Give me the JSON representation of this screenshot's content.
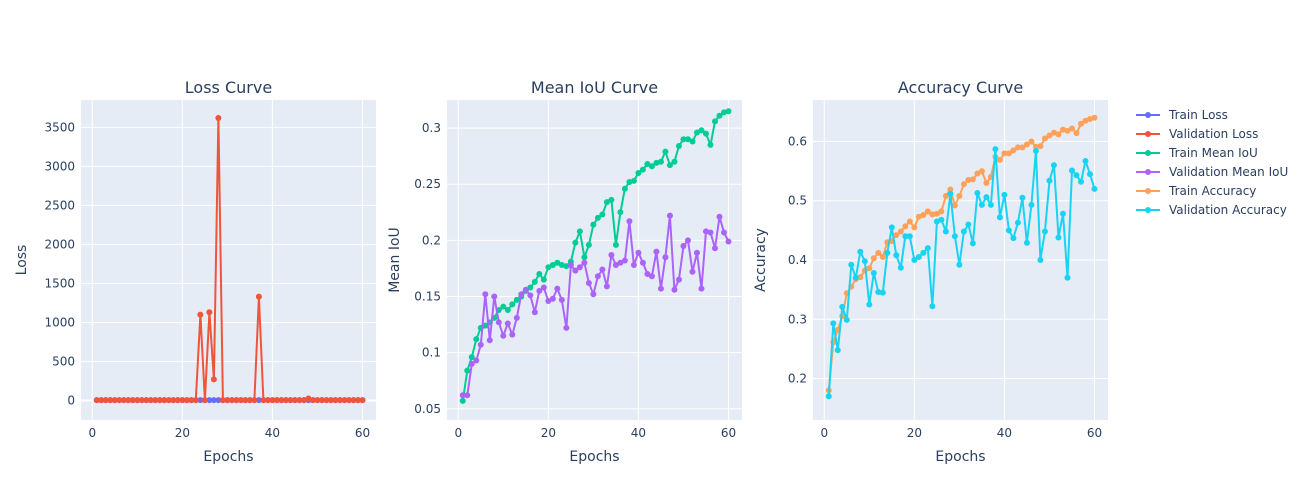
{
  "chart_data": [
    {
      "type": "line",
      "title": "Loss Curve",
      "xlabel": "Epochs",
      "ylabel": "Loss",
      "xlim": [
        -2.5,
        63
      ],
      "ylim": [
        -250,
        3850
      ],
      "xticks": [
        0,
        20,
        40,
        60
      ],
      "yticks": [
        0,
        500,
        1000,
        1500,
        2000,
        2500,
        3000,
        3500
      ],
      "x": [
        1,
        2,
        3,
        4,
        5,
        6,
        7,
        8,
        9,
        10,
        11,
        12,
        13,
        14,
        15,
        16,
        17,
        18,
        19,
        20,
        21,
        22,
        23,
        24,
        25,
        26,
        27,
        28,
        29,
        30,
        31,
        32,
        33,
        34,
        35,
        36,
        37,
        38,
        39,
        40,
        41,
        42,
        43,
        44,
        45,
        46,
        47,
        48,
        49,
        50,
        51,
        52,
        53,
        54,
        55,
        56,
        57,
        58,
        59,
        60
      ],
      "series": [
        {
          "name": "Train Loss",
          "color": "#636efa",
          "values": [
            5,
            4,
            4,
            4,
            4,
            4,
            4,
            4,
            4,
            4,
            4,
            4,
            4,
            4,
            4,
            4,
            4,
            4,
            4,
            4,
            4,
            4,
            4,
            4,
            4,
            4,
            4,
            4,
            4,
            4,
            4,
            4,
            4,
            4,
            4,
            4,
            4,
            4,
            4,
            4,
            4,
            4,
            4,
            4,
            4,
            4,
            4,
            4,
            4,
            4,
            4,
            4,
            4,
            4,
            4,
            4,
            4,
            4,
            4,
            4
          ]
        },
        {
          "name": "Validation Loss",
          "color": "#ef553b",
          "values": [
            5,
            5,
            5,
            5,
            5,
            5,
            5,
            5,
            5,
            5,
            5,
            5,
            5,
            5,
            5,
            5,
            5,
            5,
            5,
            5,
            5,
            5,
            5,
            1100,
            5,
            1130,
            270,
            3620,
            5,
            5,
            5,
            5,
            5,
            5,
            5,
            5,
            1330,
            5,
            5,
            5,
            5,
            5,
            5,
            5,
            5,
            5,
            5,
            25,
            5,
            5,
            5,
            5,
            5,
            5,
            5,
            5,
            5,
            5,
            5,
            5
          ]
        }
      ]
    },
    {
      "type": "line",
      "title": "Mean IoU Curve",
      "xlabel": "Epochs",
      "ylabel": "Mean IoU",
      "xlim": [
        -2.5,
        63
      ],
      "ylim": [
        0.04,
        0.325
      ],
      "xticks": [
        0,
        20,
        40,
        60
      ],
      "yticks": [
        0.05,
        0.1,
        0.15,
        0.2,
        0.25,
        0.3
      ],
      "x": [
        1,
        2,
        3,
        4,
        5,
        6,
        7,
        8,
        9,
        10,
        11,
        12,
        13,
        14,
        15,
        16,
        17,
        18,
        19,
        20,
        21,
        22,
        23,
        24,
        25,
        26,
        27,
        28,
        29,
        30,
        31,
        32,
        33,
        34,
        35,
        36,
        37,
        38,
        39,
        40,
        41,
        42,
        43,
        44,
        45,
        46,
        47,
        48,
        49,
        50,
        51,
        52,
        53,
        54,
        55,
        56,
        57,
        58,
        59,
        60
      ],
      "series": [
        {
          "name": "Train Mean IoU",
          "color": "#00cc96",
          "values": [
            0.057,
            0.084,
            0.096,
            0.112,
            0.122,
            0.124,
            0.127,
            0.131,
            0.138,
            0.141,
            0.138,
            0.143,
            0.147,
            0.15,
            0.155,
            0.158,
            0.163,
            0.17,
            0.165,
            0.176,
            0.178,
            0.18,
            0.178,
            0.177,
            0.181,
            0.198,
            0.208,
            0.185,
            0.196,
            0.214,
            0.22,
            0.223,
            0.234,
            0.236,
            0.196,
            0.225,
            0.246,
            0.252,
            0.253,
            0.26,
            0.263,
            0.268,
            0.266,
            0.269,
            0.27,
            0.279,
            0.267,
            0.27,
            0.284,
            0.29,
            0.29,
            0.288,
            0.296,
            0.298,
            0.295,
            0.285,
            0.306,
            0.311,
            0.314,
            0.315
          ]
        },
        {
          "name": "Validation Mean IoU",
          "color": "#ab63fa",
          "values": [
            0.062,
            0.062,
            0.09,
            0.093,
            0.107,
            0.152,
            0.111,
            0.15,
            0.127,
            0.115,
            0.126,
            0.116,
            0.131,
            0.152,
            0.156,
            0.151,
            0.136,
            0.155,
            0.158,
            0.146,
            0.148,
            0.157,
            0.147,
            0.122,
            0.178,
            0.173,
            0.176,
            0.18,
            0.162,
            0.152,
            0.168,
            0.174,
            0.159,
            0.187,
            0.178,
            0.18,
            0.182,
            0.217,
            0.178,
            0.189,
            0.18,
            0.17,
            0.168,
            0.19,
            0.157,
            0.185,
            0.222,
            0.156,
            0.165,
            0.195,
            0.2,
            0.172,
            0.189,
            0.157,
            0.208,
            0.207,
            0.193,
            0.221,
            0.207,
            0.199
          ]
        }
      ]
    },
    {
      "type": "line",
      "title": "Accuracy Curve",
      "xlabel": "Epochs",
      "ylabel": "Accuracy",
      "xlim": [
        -2.5,
        63
      ],
      "ylim": [
        0.13,
        0.67
      ],
      "xticks": [
        0,
        20,
        40,
        60
      ],
      "yticks": [
        0.2,
        0.3,
        0.4,
        0.5,
        0.6
      ],
      "x": [
        1,
        2,
        3,
        4,
        5,
        6,
        7,
        8,
        9,
        10,
        11,
        12,
        13,
        14,
        15,
        16,
        17,
        18,
        19,
        20,
        21,
        22,
        23,
        24,
        25,
        26,
        27,
        28,
        29,
        30,
        31,
        32,
        33,
        34,
        35,
        36,
        37,
        38,
        39,
        40,
        41,
        42,
        43,
        44,
        45,
        46,
        47,
        48,
        49,
        50,
        51,
        52,
        53,
        54,
        55,
        56,
        57,
        58,
        59,
        60
      ],
      "series": [
        {
          "name": "Train Accuracy",
          "color": "#ffa15a",
          "values": [
            0.18,
            0.261,
            0.282,
            0.305,
            0.344,
            0.355,
            0.368,
            0.371,
            0.382,
            0.386,
            0.403,
            0.412,
            0.405,
            0.43,
            0.432,
            0.442,
            0.448,
            0.457,
            0.465,
            0.455,
            0.473,
            0.476,
            0.482,
            0.477,
            0.478,
            0.482,
            0.508,
            0.519,
            0.492,
            0.508,
            0.528,
            0.535,
            0.536,
            0.546,
            0.55,
            0.53,
            0.54,
            0.574,
            0.569,
            0.58,
            0.58,
            0.585,
            0.59,
            0.59,
            0.595,
            0.6,
            0.591,
            0.592,
            0.605,
            0.61,
            0.615,
            0.612,
            0.62,
            0.618,
            0.622,
            0.614,
            0.63,
            0.635,
            0.638,
            0.64
          ]
        },
        {
          "name": "Validation Accuracy",
          "color": "#19d3f3",
          "values": [
            0.17,
            0.293,
            0.248,
            0.321,
            0.299,
            0.392,
            0.37,
            0.414,
            0.398,
            0.325,
            0.378,
            0.346,
            0.345,
            0.412,
            0.455,
            0.408,
            0.387,
            0.44,
            0.44,
            0.4,
            0.405,
            0.412,
            0.42,
            0.322,
            0.465,
            0.468,
            0.448,
            0.512,
            0.44,
            0.392,
            0.448,
            0.46,
            0.428,
            0.513,
            0.493,
            0.506,
            0.493,
            0.587,
            0.472,
            0.51,
            0.45,
            0.437,
            0.463,
            0.505,
            0.429,
            0.493,
            0.584,
            0.4,
            0.448,
            0.534,
            0.56,
            0.438,
            0.478,
            0.37,
            0.551,
            0.543,
            0.532,
            0.567,
            0.545,
            0.52
          ]
        }
      ]
    }
  ]
}
